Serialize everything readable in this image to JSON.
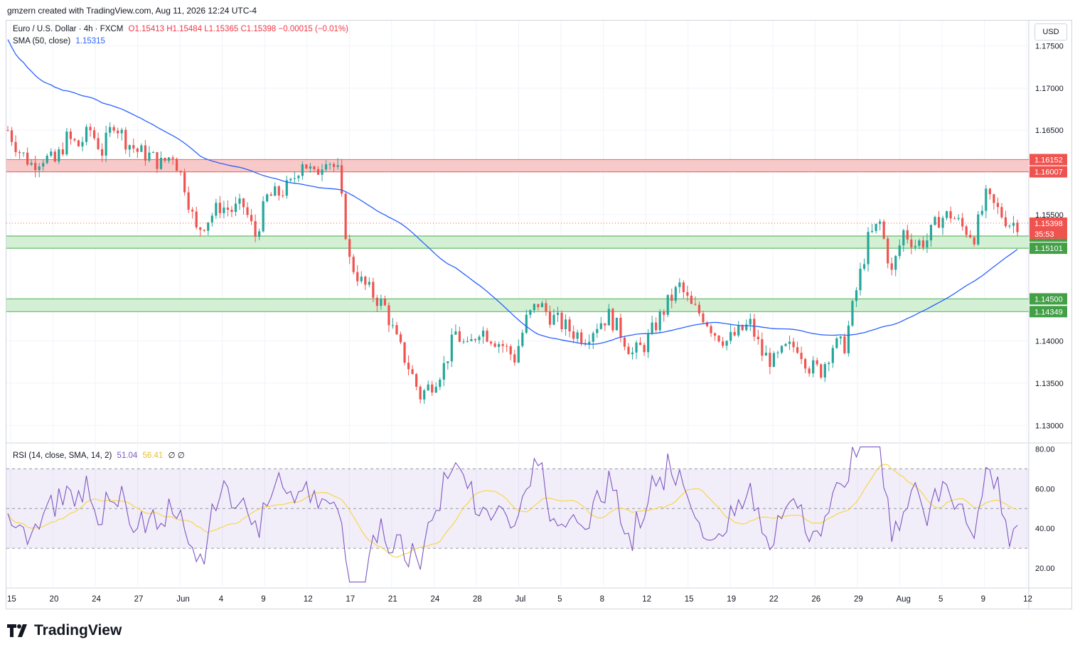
{
  "header": {
    "credit": "gmzern created with TradingView.com, Aug 11, 2026 12:24 UTC-4"
  },
  "legend": {
    "symbol": "Euro / U.S. Dollar · 4h · FXCM",
    "ohlc": "O1.15413  H1.15484  L1.15365  C1.15398  −0.00015 (−0.01%)",
    "sma": "SMA (50, close)",
    "sma_value": "1.15315",
    "rsi": "RSI (14, close, SMA, 14, 2)",
    "rsi_value": "51.04",
    "rsi_sma_value": "56.41",
    "rsi_extra": "∅  ∅"
  },
  "currency_button": "USD",
  "brand": "TradingView",
  "colors": {
    "up": "#26a69a",
    "down": "#ef5350",
    "sma": "#2962ff",
    "rsi": "#7e57c2",
    "rsi_sma": "#f7d64a",
    "resistance_zone": "#f8c9c9",
    "support_zone": "#d4f0d4"
  },
  "chart_data": [
    {
      "type": "candlestick",
      "title": "Euro / U.S. Dollar · 4h · FXCM",
      "ylim": [
        1.128,
        1.178
      ],
      "yticks": [
        "1.17500",
        "1.17000",
        "1.16500",
        "1.15500",
        "1.14000",
        "1.13500",
        "1.13000"
      ],
      "xticks": [
        "15",
        "20",
        "24",
        "27",
        "Jun",
        "4",
        "9",
        "12",
        "17",
        "21",
        "24",
        "28",
        "Jul",
        "5",
        "8",
        "12",
        "15",
        "19",
        "22",
        "26",
        "29",
        "Aug",
        "5",
        "9",
        "12"
      ],
      "series": [
        {
          "name": "SMA (50, close)",
          "last": 1.15315
        }
      ],
      "close_path": [
        [
          0,
          1.165
        ],
        [
          3,
          1.1625
        ],
        [
          6,
          1.161
        ],
        [
          9,
          1.1618
        ],
        [
          12,
          1.1612
        ],
        [
          15,
          1.164
        ],
        [
          18,
          1.1632
        ],
        [
          21,
          1.165
        ],
        [
          24,
          1.1625
        ],
        [
          27,
          1.166
        ],
        [
          30,
          1.1638
        ],
        [
          33,
          1.1625
        ],
        [
          36,
          1.162
        ],
        [
          39,
          1.161
        ],
        [
          42,
          1.1622
        ],
        [
          45,
          1.1585
        ],
        [
          48,
          1.153
        ],
        [
          51,
          1.1545
        ],
        [
          54,
          1.156
        ],
        [
          57,
          1.1555
        ],
        [
          60,
          1.156
        ],
        [
          63,
          1.1525
        ],
        [
          66,
          1.157
        ],
        [
          69,
          1.1575
        ],
        [
          72,
          1.1585
        ],
        [
          75,
          1.1615
        ],
        [
          78,
          1.1595
        ],
        [
          81,
          1.162
        ],
        [
          84,
          1.16
        ],
        [
          87,
          1.1495
        ],
        [
          90,
          1.147
        ],
        [
          93,
          1.1455
        ],
        [
          96,
          1.144
        ],
        [
          99,
          1.14
        ],
        [
          102,
          1.137
        ],
        [
          105,
          1.1335
        ],
        [
          108,
          1.135
        ],
        [
          111,
          1.137
        ],
        [
          114,
          1.141
        ],
        [
          117,
          1.139
        ],
        [
          120,
          1.1415
        ],
        [
          123,
          1.1405
        ],
        [
          126,
          1.1395
        ],
        [
          129,
          1.138
        ],
        [
          132,
          1.1425
        ],
        [
          135,
          1.1445
        ],
        [
          138,
          1.143
        ],
        [
          141,
          1.142
        ],
        [
          144,
          1.141
        ],
        [
          147,
          1.1405
        ],
        [
          150,
          1.142
        ],
        [
          153,
          1.143
        ],
        [
          156,
          1.141
        ],
        [
          159,
          1.1385
        ],
        [
          162,
          1.1395
        ],
        [
          165,
          1.142
        ],
        [
          168,
          1.1445
        ],
        [
          171,
          1.1465
        ],
        [
          174,
          1.144
        ],
        [
          177,
          1.143
        ],
        [
          180,
          1.141
        ],
        [
          183,
          1.14
        ],
        [
          186,
          1.141
        ],
        [
          189,
          1.142
        ],
        [
          192,
          1.1385
        ],
        [
          195,
          1.1375
        ],
        [
          198,
          1.139
        ],
        [
          201,
          1.1395
        ],
        [
          204,
          1.137
        ],
        [
          207,
          1.1365
        ],
        [
          210,
          1.1395
        ],
        [
          213,
          1.1395
        ],
        [
          216,
          1.146
        ],
        [
          219,
          1.152
        ],
        [
          222,
          1.154
        ],
        [
          225,
          1.148
        ],
        [
          228,
          1.153
        ],
        [
          231,
          1.1515
        ],
        [
          234,
          1.152
        ],
        [
          237,
          1.1545
        ],
        [
          240,
          1.155
        ],
        [
          243,
          1.1535
        ],
        [
          246,
          1.1525
        ],
        [
          249,
          1.157
        ],
        [
          252,
          1.1555
        ],
        [
          255,
          1.154
        ],
        [
          257,
          1.154
        ]
      ]
    },
    {
      "type": "line",
      "title": "RSI (14, close, SMA, 14, 2)",
      "ylim": [
        10,
        83
      ],
      "yticks": [
        "80.00",
        "60.00",
        "40.00",
        "20.00"
      ],
      "bands": [
        30,
        50,
        70
      ],
      "series": [
        {
          "name": "RSI",
          "last": 51.04
        },
        {
          "name": "SMA",
          "last": 56.41
        }
      ]
    }
  ],
  "levels": {
    "resistance": [
      "1.16152",
      "1.16007"
    ],
    "support_upper": [
      "1.15245",
      "1.15101"
    ],
    "support_lower": [
      "1.14500",
      "1.14349"
    ],
    "last_price": "1.15398",
    "countdown": "35:53"
  }
}
